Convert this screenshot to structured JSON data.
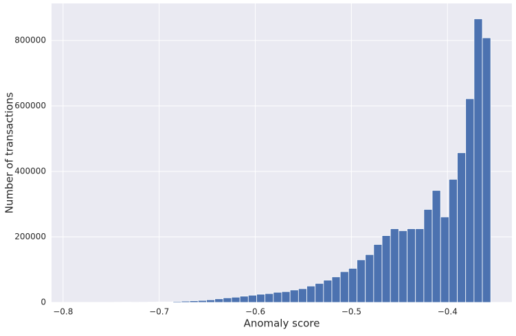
{
  "chart_data": {
    "type": "histogram",
    "xlabel": "Anomaly score",
    "ylabel": "Number of transactions",
    "bins": [
      -0.79,
      -0.7813,
      -0.7726,
      -0.7639,
      -0.7552,
      -0.7465,
      -0.7378,
      -0.7291,
      -0.7204,
      -0.7117,
      -0.703,
      -0.6943,
      -0.6856,
      -0.6769,
      -0.6682,
      -0.6595,
      -0.6508,
      -0.6421,
      -0.6334,
      -0.6247,
      -0.616,
      -0.6073,
      -0.5986,
      -0.5899,
      -0.5812,
      -0.5725,
      -0.5638,
      -0.5551,
      -0.5464,
      -0.5377,
      -0.529,
      -0.5203,
      -0.5116,
      -0.5029,
      -0.4942,
      -0.4855,
      -0.4768,
      -0.4681,
      -0.4594,
      -0.4507,
      -0.442,
      -0.4333,
      -0.4246,
      -0.4159,
      -0.4072,
      -0.3985,
      -0.3898,
      -0.3811,
      -0.3724,
      -0.3637,
      -0.355
    ],
    "values": [
      200,
      100,
      100,
      300,
      200,
      500,
      800,
      400,
      600,
      900,
      1500,
      1500,
      3000,
      4000,
      5000,
      6000,
      8000,
      11000,
      14000,
      16000,
      19000,
      22000,
      25000,
      27000,
      31000,
      33000,
      38000,
      42000,
      50000,
      58000,
      68000,
      78000,
      94000,
      104000,
      130000,
      146000,
      177000,
      204000,
      225000,
      219000,
      225000,
      225000,
      284000,
      342000,
      261000,
      376000,
      457000,
      622000,
      866000,
      808000
    ],
    "color": "#4c72b0",
    "xlim": [
      -0.812,
      -0.333
    ],
    "xticks": [
      {
        "value": -0.8,
        "label": "−0.8"
      },
      {
        "value": -0.7,
        "label": "−0.7"
      },
      {
        "value": -0.6,
        "label": "−0.6"
      },
      {
        "value": -0.5,
        "label": "−0.5"
      },
      {
        "value": -0.4,
        "label": "−0.4"
      }
    ],
    "ylim": [
      0,
      913000
    ],
    "yticks": [
      0,
      200000,
      400000,
      600000,
      800000
    ],
    "grid": true
  }
}
